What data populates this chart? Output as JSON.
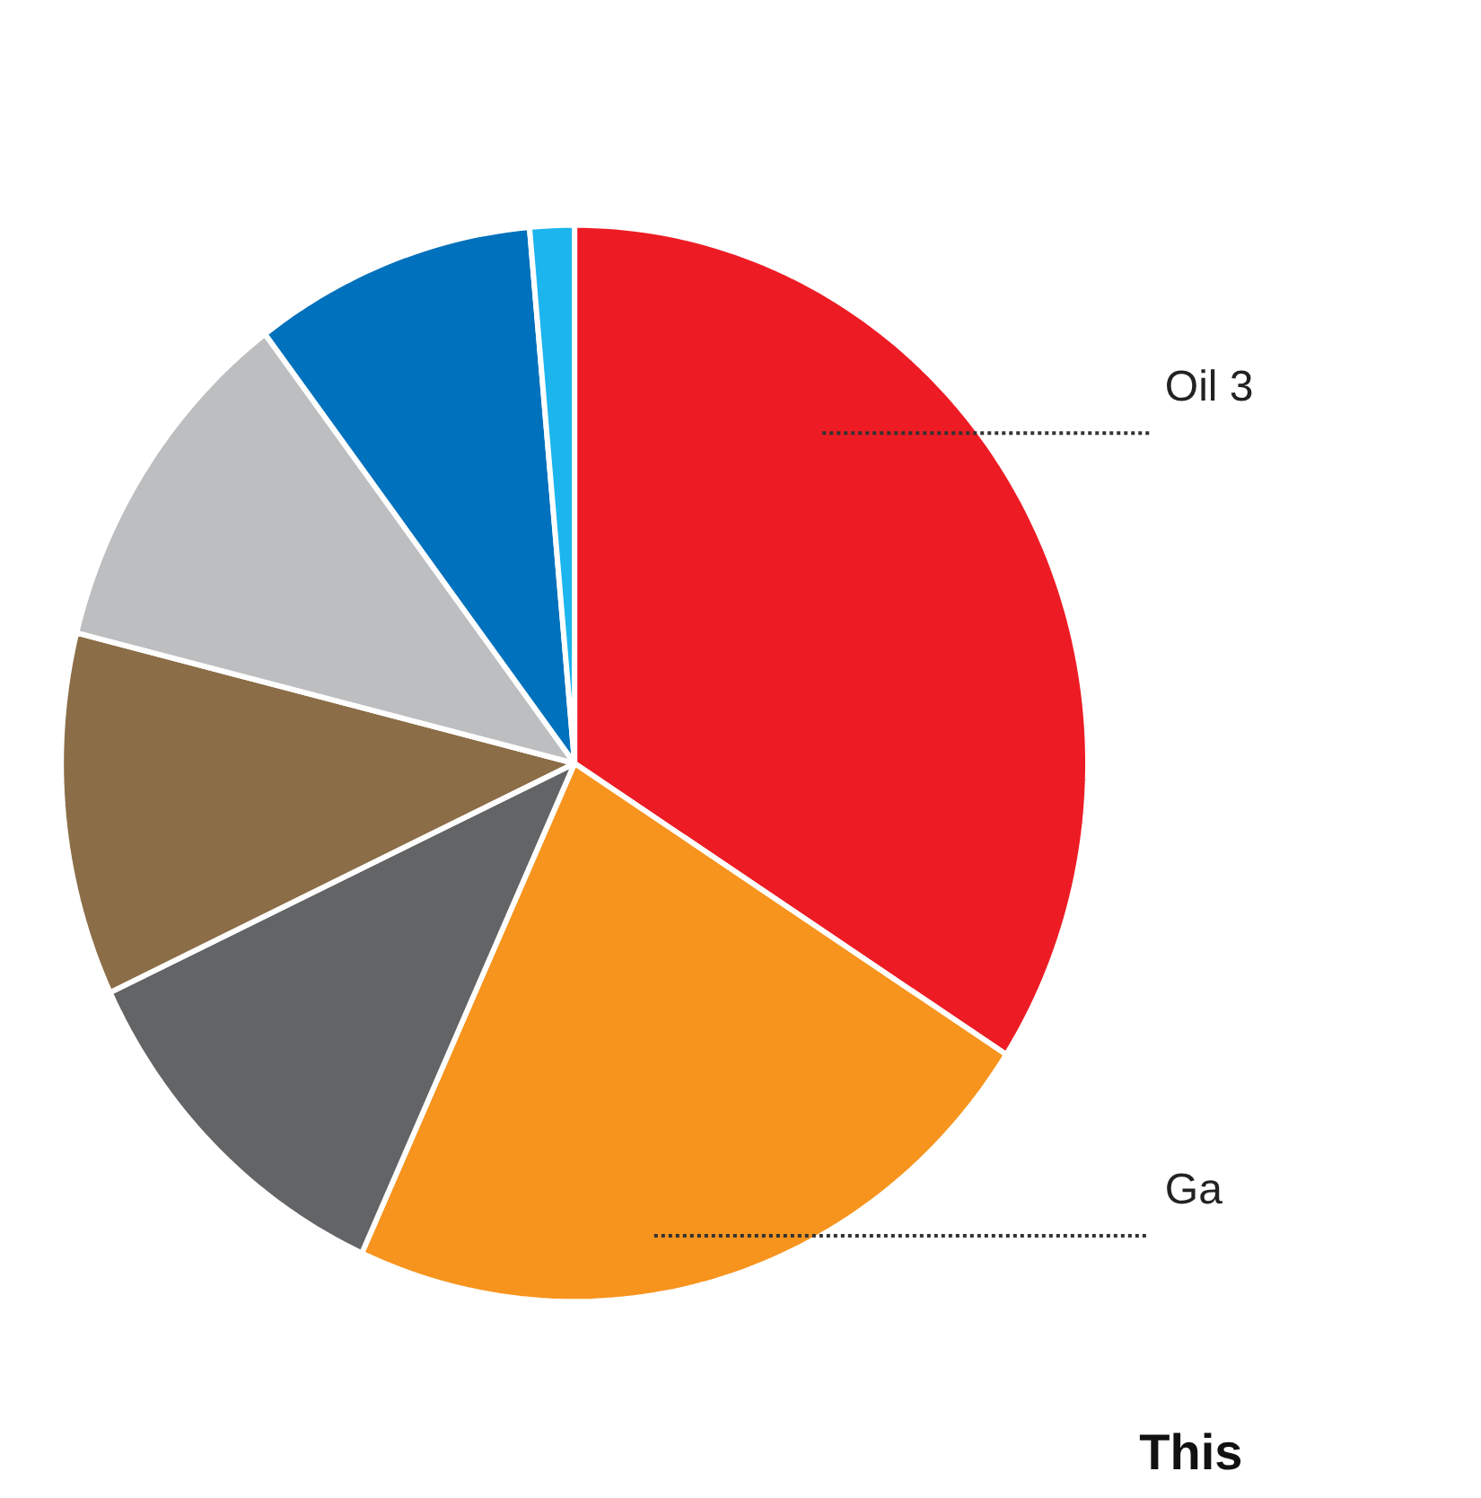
{
  "chart_data": {
    "type": "pie",
    "categories": [
      "Oil 3",
      "Ga",
      null,
      null,
      null,
      null,
      null
    ],
    "values": [
      34.1,
      22.7,
      11.2,
      10.9,
      10.8,
      8.9,
      1.4
    ],
    "colors": [
      "#ed1c24",
      "#f7941d",
      "#636466",
      "#8b6d47",
      "#bcbec0",
      "#0071bc",
      "#1cb5ed"
    ],
    "annotations": [
      "This"
    ]
  }
}
